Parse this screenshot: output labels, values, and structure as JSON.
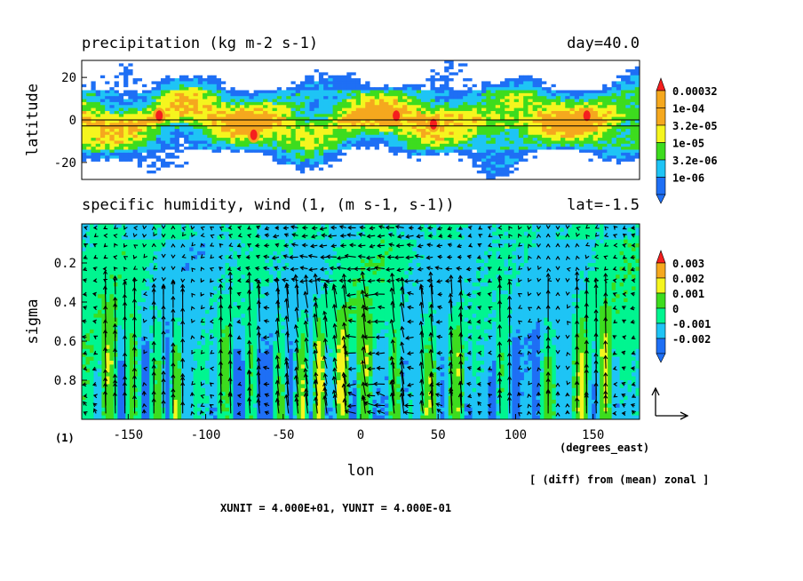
{
  "colors": {
    "blue": "#1e6ff5",
    "sky": "#1ec4f5",
    "green": "#3ddc1e",
    "lightgreen": "#00f590",
    "yellow": "#f5f51e",
    "orange": "#f5a81e",
    "red": "#f51e1e",
    "white": "#ffffff"
  },
  "chart_data": [
    {
      "type": "heatmap",
      "title": "precipitation (kg m-2 s-1)",
      "subtitle": "day=40.0",
      "ylabel": "latitude",
      "xlim": [
        -180,
        180
      ],
      "ylim": [
        -28,
        28
      ],
      "yticks": [
        "20",
        "0",
        "-20"
      ],
      "legend": {
        "placement": "right",
        "levels": [
          "0.00032",
          "1e-04",
          "3.2e-05",
          "1e-05",
          "3.2e-06",
          "1e-06"
        ]
      },
      "reference_line_lat": 0,
      "reference_line_lat2": -2,
      "maxima": [
        {
          "lon": -130,
          "lat": 2
        },
        {
          "lon": -69,
          "lat": -7
        },
        {
          "lon": 23,
          "lat": 2
        },
        {
          "lon": 47,
          "lat": -2
        },
        {
          "lon": 146,
          "lat": 2
        }
      ]
    },
    {
      "type": "heatmap",
      "title": "specific humidity, wind (1, (m s-1, s-1))",
      "subtitle": "lat=-1.5",
      "xlabel": "lon",
      "ylabel": "sigma",
      "xlim": [
        -180,
        180
      ],
      "ylim": [
        1.0,
        0.0
      ],
      "xticks": [
        "-150",
        "-100",
        "-50",
        "0",
        "50",
        "100",
        "150"
      ],
      "yticks": [
        "0.2",
        "0.4",
        "0.6",
        "0.8"
      ],
      "x_unit_label": "(degrees_east)",
      "legend": {
        "placement": "right",
        "levels": [
          "0.003",
          "0.002",
          "0.001",
          "0",
          "-0.001",
          "-0.002"
        ]
      },
      "vectors": true
    }
  ],
  "annotations": {
    "panel_index": "(1)",
    "diff_note": "[ (diff) from (mean) zonal ]",
    "units_note": "XUNIT = 4.000E+01, YUNIT = 4.000E-01"
  }
}
